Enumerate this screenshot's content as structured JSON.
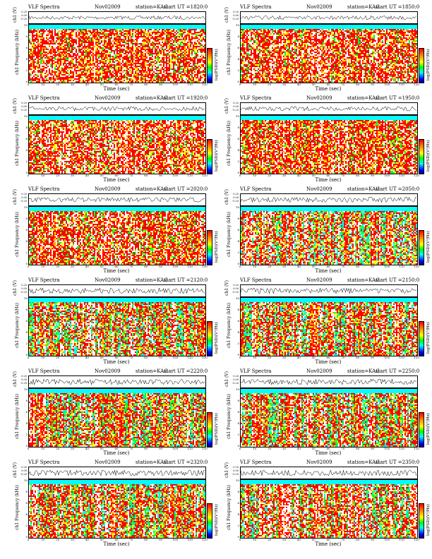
{
  "panels": [
    {
      "title": "VLF Spectra",
      "date": "Nov02009",
      "station": "station=KAG",
      "start": "start  UT  =1820:0",
      "density": 0.35
    },
    {
      "title": "VLF Spectra",
      "date": "Nov02009",
      "station": "station=KAG",
      "start": "start  UT  =1850:0",
      "density": 0.45
    },
    {
      "title": "VLF Spectra",
      "date": "Nov02009",
      "station": "station=KAG",
      "start": "start  UT  =1920:0",
      "density": 0.5
    },
    {
      "title": "VLF Spectra",
      "date": "Nov02009",
      "station": "station=KAG",
      "start": "start  UT  =1950:0",
      "density": 0.55
    },
    {
      "title": "VLF Spectra",
      "date": "Nov02009",
      "station": "station=KAG",
      "start": "start  UT  =2020:0",
      "density": 0.55
    },
    {
      "title": "VLF Spectra",
      "date": "Nov02009",
      "station": "station=KAG",
      "start": "start  UT  =2050:0",
      "density": 0.7
    },
    {
      "title": "VLF Spectra",
      "date": "Nov02009",
      "station": "station=KAG",
      "start": "start  UT  =2120:0",
      "density": 0.8
    },
    {
      "title": "VLF Spectra",
      "date": "Nov02009",
      "station": "station=KAG",
      "start": "start  UT  =2150:0",
      "density": 0.8
    },
    {
      "title": "VLF Spectra",
      "date": "Nov02009",
      "station": "station=KAG",
      "start": "start  UT  =2220:0",
      "density": 0.85
    },
    {
      "title": "VLF Spectra",
      "date": "Nov02009",
      "station": "station=KAG",
      "start": "start  UT  =2250:0",
      "density": 0.85
    },
    {
      "title": "VLF Spectra",
      "date": "Nov02009",
      "station": "station=KAG",
      "start": "start  UT  =2320:0",
      "density": 0.85
    },
    {
      "title": "VLF Spectra",
      "date": "Nov02009",
      "station": "station=KAG",
      "start": "start  UT  =2350:0",
      "density": 0.85
    }
  ],
  "labels": {
    "ch_axis": "ch1 (V)",
    "freq_axis_prefix": "ch1",
    "freq_axis": "Frequency  (kHz)",
    "time_axis": "Time  (sec)",
    "colorbar": "log(PSD)(V²/Hz)",
    "trace_ticks": [
      "0.20",
      "0.00",
      "-0.20"
    ],
    "y_ticks": [
      "10",
      "8",
      "6",
      "4",
      "2",
      "0"
    ],
    "x_ticks": [
      "0",
      "10",
      "20",
      "30",
      "40",
      "50",
      "60",
      "70",
      "80",
      "90",
      "100",
      "110",
      "120"
    ]
  },
  "colors": {
    "red": "#ff0000",
    "orange": "#ff9900",
    "yellow": "#ffff00",
    "green": "#00ff33",
    "cyan": "#00ffff",
    "white": "#ffffff"
  }
}
